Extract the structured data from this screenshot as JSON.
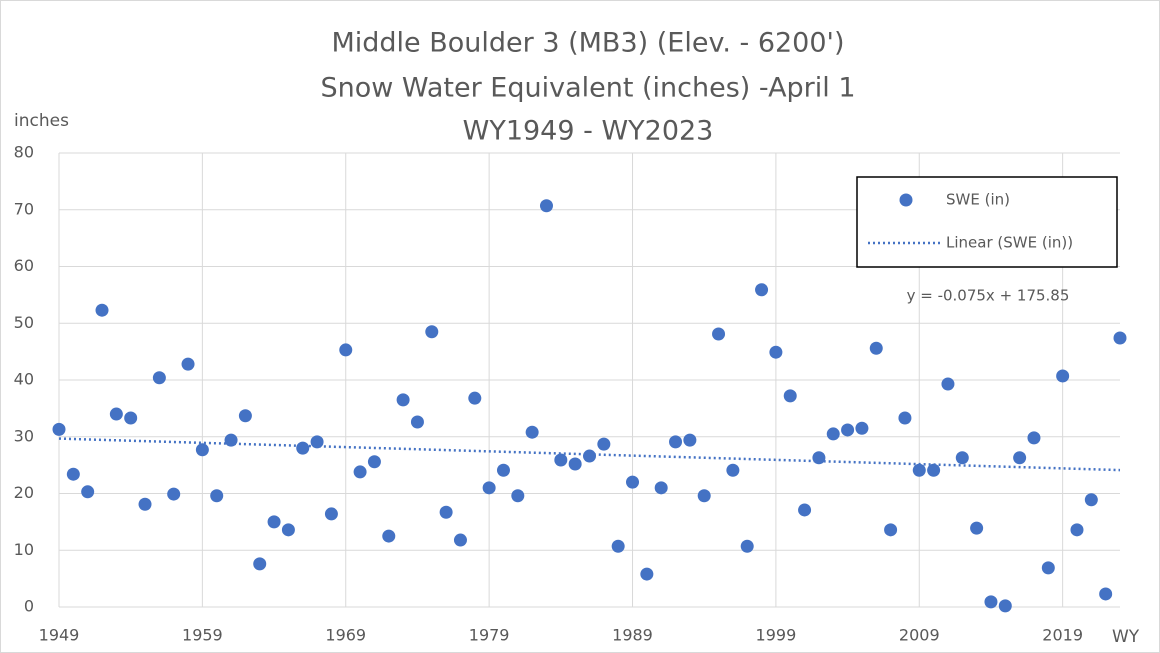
{
  "chart_data": {
    "type": "scatter",
    "title": [
      "Middle Boulder 3 (MB3) (Elev. - 6200')",
      "Snow Water Equivalent (inches) -April 1",
      "WY1949 - WY2023"
    ],
    "y_label": "inches",
    "x_label": "WY",
    "xlim": [
      1949,
      2023
    ],
    "xticks": [
      1949,
      1959,
      1969,
      1979,
      1989,
      1999,
      2009,
      2019
    ],
    "ylim": [
      0,
      80
    ],
    "yticks": [
      0,
      10,
      20,
      30,
      40,
      50,
      60,
      70,
      80
    ],
    "grid": true,
    "legend": "upper right",
    "series": [
      {
        "name": "SWE (in)",
        "color": "#4472c4",
        "x": [
          1949,
          1950,
          1951,
          1952,
          1953,
          1954,
          1955,
          1956,
          1957,
          1958,
          1959,
          1960,
          1961,
          1962,
          1963,
          1964,
          1965,
          1966,
          1967,
          1968,
          1969,
          1970,
          1971,
          1972,
          1973,
          1974,
          1975,
          1976,
          1977,
          1978,
          1979,
          1980,
          1981,
          1982,
          1983,
          1984,
          1985,
          1986,
          1987,
          1988,
          1989,
          1990,
          1991,
          1992,
          1993,
          1994,
          1995,
          1996,
          1997,
          1998,
          1999,
          2000,
          2001,
          2002,
          2003,
          2004,
          2005,
          2006,
          2007,
          2008,
          2009,
          2010,
          2011,
          2012,
          2013,
          2014,
          2015,
          2016,
          2017,
          2018,
          2019,
          2020,
          2021,
          2022,
          2023
        ],
        "values": [
          31.3,
          23.4,
          20.3,
          52.3,
          34.0,
          33.3,
          18.1,
          40.4,
          19.9,
          42.8,
          27.7,
          19.6,
          29.4,
          33.7,
          7.6,
          15.0,
          13.6,
          28.0,
          29.1,
          16.4,
          45.3,
          23.8,
          25.6,
          12.5,
          36.5,
          32.6,
          48.5,
          16.7,
          11.8,
          36.8,
          21.0,
          24.1,
          19.6,
          30.8,
          70.7,
          25.9,
          25.2,
          26.6,
          28.7,
          10.7,
          22.0,
          5.8,
          21.0,
          29.1,
          29.4,
          19.6,
          48.1,
          24.1,
          10.7,
          55.9,
          44.9,
          37.2,
          17.1,
          26.3,
          30.5,
          31.2,
          31.5,
          45.6,
          13.6,
          33.3,
          24.1,
          24.1,
          39.3,
          26.3,
          13.9,
          0.9,
          0.2,
          26.3,
          29.8,
          6.9,
          40.7,
          13.6,
          18.9,
          2.3,
          47.4
        ]
      }
    ],
    "trendline": {
      "name": "Linear (SWE (in))",
      "equation": "y = -0.075x + 175.85",
      "slope": -0.075,
      "intercept": 175.85,
      "color": "#4472c4"
    }
  }
}
